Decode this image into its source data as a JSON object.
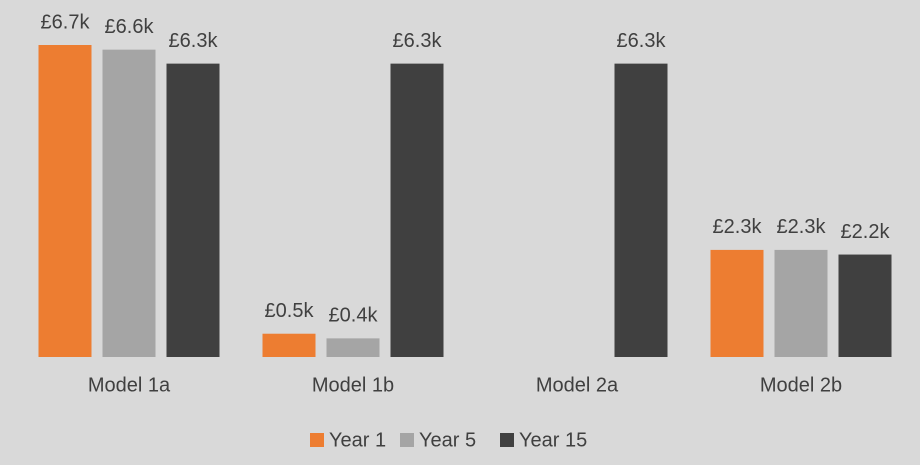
{
  "chart_data": {
    "type": "bar",
    "categories": [
      "Model 1a",
      "Model 1b",
      "Model 2a",
      "Model 2b"
    ],
    "series": [
      {
        "name": "Year 1",
        "color": "#ed7d31",
        "values": [
          6.7,
          0.5,
          null,
          2.3
        ],
        "value_labels": [
          "£6.7k",
          "£0.5k",
          null,
          "£2.3k"
        ]
      },
      {
        "name": "Year 5",
        "color": "#a5a5a5",
        "values": [
          6.6,
          0.4,
          null,
          2.3
        ],
        "value_labels": [
          "£6.6k",
          "£0.4k",
          null,
          "£2.3k"
        ]
      },
      {
        "name": "Year 15",
        "color": "#404040",
        "values": [
          6.3,
          6.3,
          6.3,
          2.2
        ],
        "value_labels": [
          "£6.3k",
          "£6.3k",
          "£6.3k",
          "£2.2k"
        ]
      }
    ],
    "legend": "bottom"
  }
}
